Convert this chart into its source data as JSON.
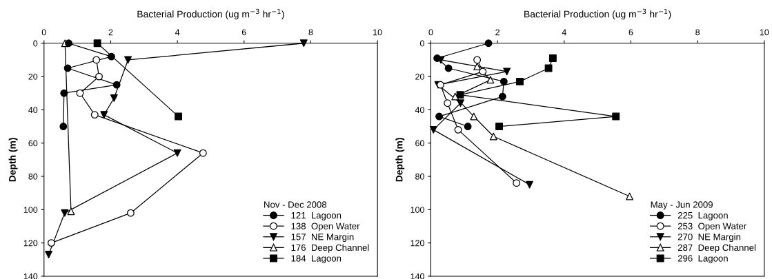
{
  "chart_data": [
    {
      "type": "line",
      "xlabel": "Bacterial Production (ug m$^{−3}$ hr$^{−1}$)",
      "ylabel": "Depth (m)",
      "legend_title": "Nov - Dec 2008",
      "legend": "bottom right",
      "grid": false,
      "line_style": "solid",
      "xlim": [
        0,
        10
      ],
      "xticks": [
        0,
        2,
        4,
        6,
        8,
        10
      ],
      "ylim": [
        140,
        0
      ],
      "yticks": [
        0,
        20,
        40,
        60,
        80,
        100,
        120,
        140
      ],
      "series": [
        {
          "name": "121  Lagoon",
          "color": "#000000",
          "marker": "circle",
          "x": [
            0.74,
            2.02,
            0.71,
            2.18,
            0.6,
            0.58
          ],
          "values": [
            0,
            8,
            15,
            25,
            30,
            50
          ]
        },
        {
          "name": "138  Open Water",
          "color": "#000000",
          "marker": "circle",
          "colors": [
            "#ffffff",
            "#ffffff",
            "#ffffff",
            "#ffffff",
            "#ffffff",
            "#ffffff",
            "#ffffff"
          ],
          "x": [
            1.57,
            1.65,
            1.08,
            1.52,
            4.77,
            2.6,
            0.22
          ],
          "values": [
            10,
            20,
            30,
            43,
            66,
            102,
            120
          ]
        },
        {
          "name": "157  NE Margin",
          "color": "#000000",
          "marker": "triangle",
          "x": [
            7.79,
            2.52,
            2.1,
            1.8,
            4.0,
            0.62,
            0.14
          ],
          "values": [
            0,
            10,
            33,
            43,
            66,
            102,
            127
          ]
        },
        {
          "name": "176  Deep Channel",
          "color": "#000000",
          "marker": "triangle_up",
          "colors": [
            "#ffffff",
            "#ffffff"
          ],
          "x": [
            0.63,
            0.81
          ],
          "values": [
            0,
            101
          ]
        },
        {
          "name": "184  Lagoon",
          "color": "#000000",
          "marker": "square",
          "x": [
            1.6,
            4.03
          ],
          "values": [
            0,
            44
          ]
        }
      ]
    },
    {
      "type": "line",
      "xlabel": "Bacterial Production (ug m$^{−3}$ hr$^{−1}$)",
      "ylabel": "Depth (m)",
      "legend_title": "May - Jun 2009",
      "legend": "bottom right",
      "grid": false,
      "line_style": "solid",
      "xlim": [
        0,
        10
      ],
      "xticks": [
        0,
        2,
        4,
        6,
        8,
        10
      ],
      "ylim": [
        140,
        0
      ],
      "yticks": [
        0,
        20,
        40,
        60,
        80,
        100,
        120,
        140
      ],
      "series": [
        {
          "name": "225  Lagoon",
          "color": "#000000",
          "marker": "circle",
          "x": [
            1.73,
            0.19,
            0.53,
            2.19,
            2.15,
            0.25,
            1.11
          ],
          "values": [
            0,
            9,
            15,
            23,
            32,
            44,
            50
          ]
        },
        {
          "name": "253  Open Water",
          "color": "#000000",
          "marker": "circle",
          "colors": [
            "#ffffff",
            "#ffffff",
            "#ffffff",
            "#ffffff",
            "#ffffff",
            "#ffffff"
          ],
          "x": [
            1.39,
            1.56,
            0.29,
            0.5,
            0.82,
            2.57
          ],
          "values": [
            10,
            17,
            25,
            36,
            52,
            84
          ]
        },
        {
          "name": "270  NE Margin",
          "color": "#000000",
          "marker": "triangle",
          "x": [
            0.3,
            2.28,
            0.22,
            0.89,
            0.08,
            2.96
          ],
          "values": [
            10,
            17,
            25,
            36,
            52,
            85
          ]
        },
        {
          "name": "287  Deep Channel",
          "color": "#000000",
          "marker": "triangle_up",
          "colors": [
            "#ffffff",
            "#ffffff",
            "#ffffff",
            "#ffffff",
            "#ffffff",
            "#ffffff"
          ],
          "x": [
            1.39,
            1.79,
            0.73,
            1.29,
            1.88,
            5.96
          ],
          "values": [
            14,
            22,
            32,
            44,
            56,
            92
          ]
        },
        {
          "name": "296  Lagoon",
          "color": "#000000",
          "marker": "square",
          "x": [
            3.66,
            3.53,
            2.67,
            0.88,
            5.55,
            2.05
          ],
          "values": [
            9,
            15,
            23,
            31,
            44,
            50
          ]
        }
      ]
    }
  ]
}
